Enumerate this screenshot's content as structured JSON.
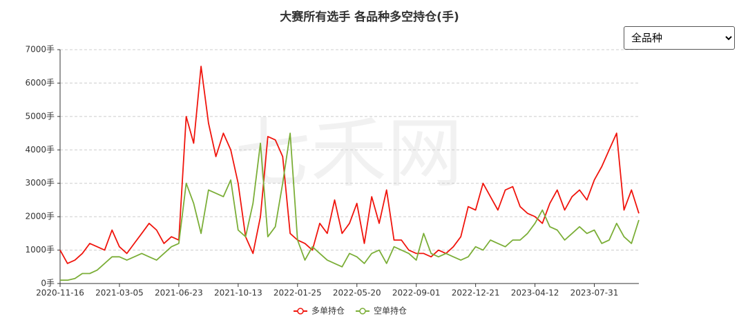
{
  "chart_data": {
    "type": "line",
    "title": "大赛所有选手 各品种多空持仓(手)",
    "watermark": "七禾网",
    "categories": [
      "2020-11-16",
      null,
      null,
      null,
      null,
      null,
      null,
      null,
      "2021-03-05",
      null,
      null,
      null,
      null,
      null,
      null,
      null,
      "2021-06-23",
      null,
      null,
      null,
      null,
      null,
      null,
      null,
      "2021-10-13",
      null,
      null,
      null,
      null,
      null,
      null,
      null,
      "2022-01-25",
      null,
      null,
      null,
      null,
      null,
      null,
      null,
      "2022-05-20",
      null,
      null,
      null,
      null,
      null,
      null,
      null,
      "2022-09-01",
      null,
      null,
      null,
      null,
      null,
      null,
      null,
      "2022-12-21",
      null,
      null,
      null,
      null,
      null,
      null,
      null,
      "2023-04-12",
      null,
      null,
      null,
      null,
      null,
      null,
      null,
      "2023-07-31",
      null,
      null,
      null,
      null,
      null,
      null
    ],
    "series": [
      {
        "name": "多单持仓",
        "color": "#f0140c",
        "values": [
          1000,
          600,
          700,
          900,
          1200,
          1100,
          1000,
          1600,
          1100,
          900,
          1200,
          1500,
          1800,
          1600,
          1200,
          1400,
          1300,
          5000,
          4200,
          6500,
          4800,
          3800,
          4500,
          4000,
          3000,
          1400,
          900,
          2000,
          4400,
          4300,
          3800,
          1500,
          1300,
          1200,
          1000,
          1800,
          1500,
          2500,
          1500,
          1800,
          2400,
          1200,
          2600,
          1800,
          2800,
          1300,
          1300,
          1000,
          900,
          900,
          800,
          1000,
          900,
          1100,
          1400,
          2300,
          2200,
          3000,
          2600,
          2200,
          2800,
          2900,
          2300,
          2100,
          2000,
          1800,
          2400,
          2800,
          2200,
          2600,
          2800,
          2500,
          3100,
          3500,
          4000,
          4500,
          2200,
          2800,
          2100
        ]
      },
      {
        "name": "空单持仓",
        "color": "#7bae37",
        "values": [
          100,
          100,
          150,
          300,
          300,
          400,
          600,
          800,
          800,
          700,
          800,
          900,
          800,
          700,
          900,
          1100,
          1200,
          3000,
          2400,
          1500,
          2800,
          2700,
          2600,
          3100,
          1600,
          1400,
          2400,
          4200,
          1400,
          1700,
          3000,
          4500,
          1300,
          700,
          1100,
          900,
          700,
          600,
          500,
          900,
          800,
          600,
          900,
          1000,
          600,
          1100,
          1000,
          900,
          700,
          1500,
          900,
          800,
          900,
          800,
          700,
          800,
          1100,
          1000,
          1300,
          1200,
          1100,
          1300,
          1300,
          1500,
          1800,
          2200,
          1700,
          1600,
          1300,
          1500,
          1700,
          1500,
          1600,
          1200,
          1300,
          1800,
          1400,
          1200,
          1900
        ]
      }
    ],
    "ylim": [
      0,
      7000
    ],
    "yticks": [
      {
        "value": 0,
        "label": "0手"
      },
      {
        "value": 1000,
        "label": "1000手"
      },
      {
        "value": 2000,
        "label": "2000手"
      },
      {
        "value": 3000,
        "label": "3000手"
      },
      {
        "value": 4000,
        "label": "4000手"
      },
      {
        "value": 5000,
        "label": "5000手"
      },
      {
        "value": 6000,
        "label": "6000手"
      },
      {
        "value": 7000,
        "label": "7000手"
      }
    ],
    "grid": true
  },
  "controls": {
    "select": "全品种"
  }
}
